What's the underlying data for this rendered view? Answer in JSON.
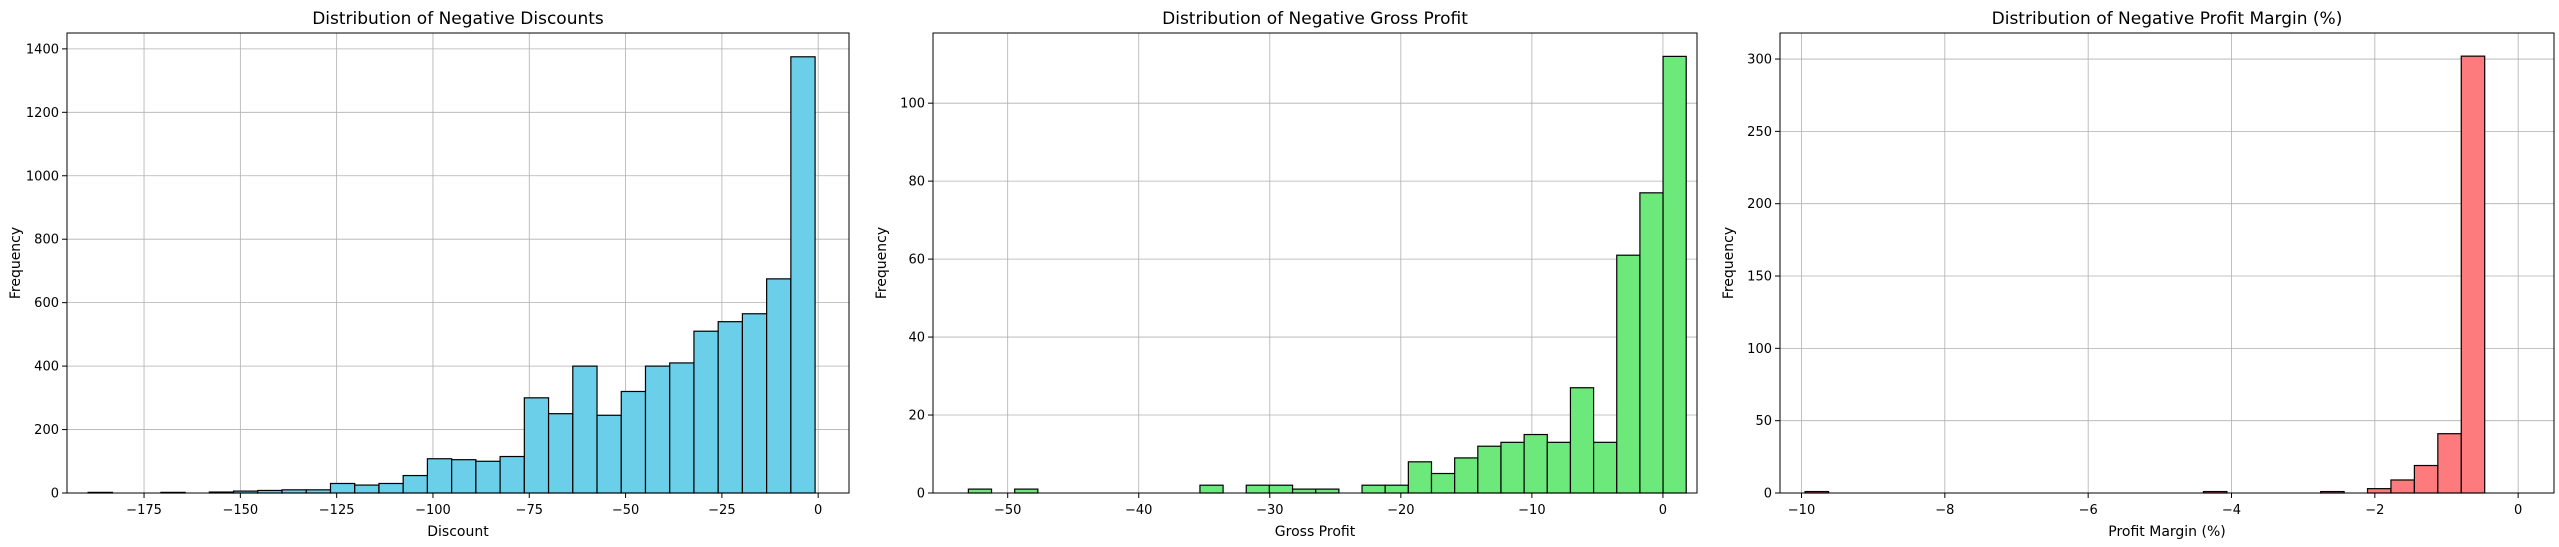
{
  "chart_data": [
    {
      "type": "bar",
      "title": "Distribution of Negative Discounts",
      "xlabel": "Discount",
      "ylabel": "Frequency",
      "color": "#6ccfea",
      "edge_color": "#000000",
      "grid": true,
      "xlim": [
        -195,
        8
      ],
      "ylim": [
        0,
        1450
      ],
      "xticks": [
        -175,
        -150,
        -125,
        -100,
        -75,
        -50,
        -25,
        0
      ],
      "yticks": [
        0,
        200,
        400,
        600,
        800,
        1000,
        1200,
        1400
      ],
      "bin_start": -189.5,
      "bin_width": 6.29,
      "counts": [
        2,
        0,
        0,
        2,
        0,
        3,
        6,
        8,
        10,
        10,
        30,
        25,
        30,
        55,
        108,
        105,
        100,
        115,
        300,
        250,
        400,
        245,
        320,
        400,
        410,
        510,
        540,
        565,
        675,
        1375
      ]
    },
    {
      "type": "bar",
      "title": "Distribution of Negative Gross Profit",
      "xlabel": "Gross Profit",
      "ylabel": "Frequency",
      "color": "#6ce97a",
      "edge_color": "#000000",
      "grid": true,
      "xlim": [
        -55.7,
        2.6
      ],
      "ylim": [
        0,
        118
      ],
      "xticks": [
        -50,
        -40,
        -30,
        -20,
        -10,
        0
      ],
      "yticks": [
        0,
        20,
        40,
        60,
        80,
        100
      ],
      "bin_start": -53.0,
      "bin_width": 1.767,
      "counts": [
        1,
        0,
        1,
        0,
        0,
        0,
        0,
        0,
        0,
        0,
        2,
        0,
        2,
        2,
        1,
        1,
        0,
        2,
        2,
        8,
        5,
        9,
        12,
        13,
        15,
        13,
        27,
        13,
        61,
        77,
        112
      ]
    },
    {
      "type": "bar",
      "title": "Distribution of Negative Profit Margin (%)",
      "xlabel": "Profit Margin (%)",
      "ylabel": "Frequency",
      "color": "#fd7a7d",
      "edge_color": "#000000",
      "grid": true,
      "xlim": [
        -10.3,
        0.5
      ],
      "ylim": [
        0,
        318
      ],
      "xticks": [
        -10,
        -8,
        -6,
        -4,
        -2,
        0
      ],
      "yticks": [
        0,
        50,
        100,
        150,
        200,
        250,
        300
      ],
      "bin_start": -9.95,
      "bin_width": 0.327,
      "counts": [
        1,
        0,
        0,
        0,
        0,
        0,
        0,
        0,
        0,
        0,
        0,
        0,
        0,
        0,
        0,
        0,
        0,
        1,
        0,
        0,
        0,
        0,
        1,
        0,
        3,
        9,
        19,
        41,
        302
      ]
    }
  ]
}
